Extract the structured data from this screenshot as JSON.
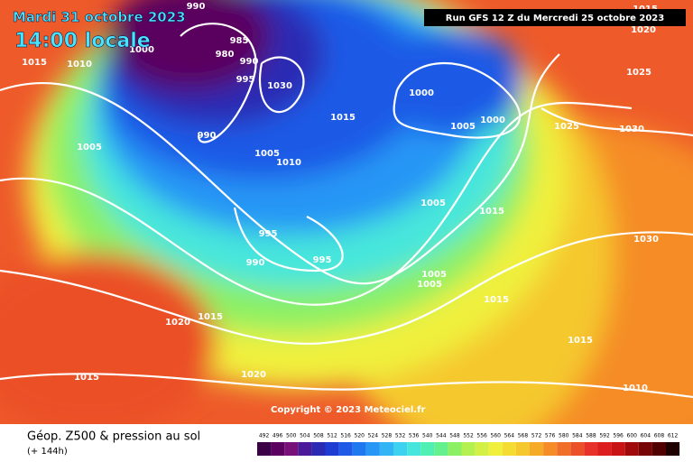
{
  "header": {
    "date": "Mardi 31 octobre 2023",
    "time": "14:00 locale",
    "run": "Run GFS 12 Z du Mercredi 25 octobre 2023"
  },
  "copyright": "Copyright © 2023 Meteociel.fr",
  "footer": {
    "title": "Géop. Z500 & pression au sol",
    "lead": "(+ 144h)"
  },
  "isobar_labels": [
    990,
    1015,
    1020,
    1015,
    1010,
    1000,
    985,
    980,
    990,
    995,
    1030,
    1015,
    1000,
    1005,
    1000,
    1025,
    1025,
    1030,
    990,
    1005,
    1005,
    1010,
    995,
    990,
    995,
    1005,
    1015,
    1030,
    1005,
    1005,
    1015,
    1020,
    1015,
    1015,
    1015,
    1020,
    1010
  ],
  "colorbar": {
    "values": [
      492,
      496,
      500,
      504,
      508,
      512,
      516,
      520,
      524,
      528,
      532,
      536,
      540,
      544,
      548,
      552,
      556,
      560,
      564,
      568,
      572,
      576,
      580,
      584,
      588,
      592,
      596,
      600,
      604,
      608,
      612
    ],
    "colors": [
      "#3c0046",
      "#5a005f",
      "#78107a",
      "#4a1a9a",
      "#2a2ab4",
      "#1e3cd2",
      "#1e5ae6",
      "#1e78f0",
      "#2896f5",
      "#32b4f5",
      "#3cd2f0",
      "#46e6dc",
      "#50f0b4",
      "#64f08c",
      "#8cf064",
      "#b4f050",
      "#d2f046",
      "#f0f03c",
      "#f5dc32",
      "#f5c82d",
      "#f5aa28",
      "#f58c28",
      "#f06e28",
      "#eb5028",
      "#e63228",
      "#dc1e1e",
      "#c81414",
      "#a00a0a",
      "#780505",
      "#500000",
      "#1e0000"
    ]
  }
}
